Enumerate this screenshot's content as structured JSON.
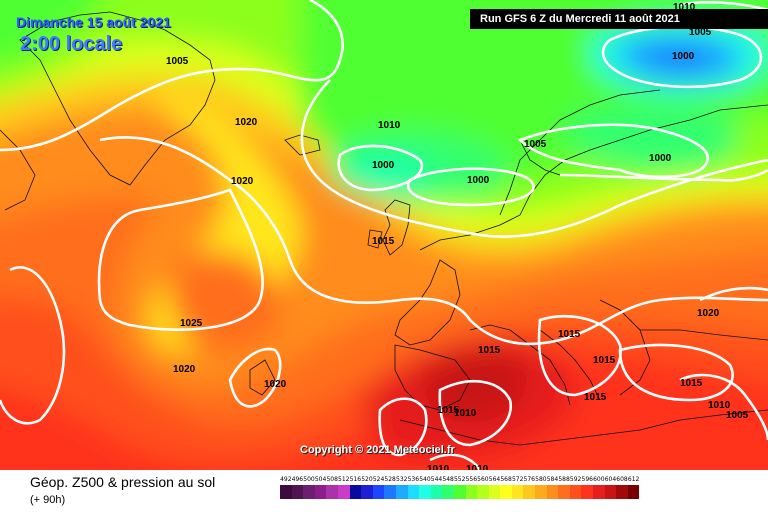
{
  "header": {
    "date": "Dimanche 15 août 2021",
    "local_time": "2:00 locale",
    "run": "Run GFS 6 Z du Mercredi 11 août 2021"
  },
  "copyright": "Copyright © 2021 Meteociel.fr",
  "footer": {
    "variable": "Géop. Z500 & pression au sol",
    "lead_time": "(+ 90h)"
  },
  "isobar_labels": [
    "1005",
    "1020",
    "1020",
    "1010",
    "1000",
    "1000",
    "1005",
    "1000",
    "1000",
    "1010",
    "1005",
    "1015",
    "1025",
    "1020",
    "1020",
    "1015",
    "1015",
    "1015",
    "1015",
    "1020",
    "1015",
    "1015",
    "1010",
    "1005",
    "1010",
    "1010",
    "1010"
  ],
  "legend": {
    "values": [
      "492",
      "496",
      "500",
      "504",
      "508",
      "512",
      "516",
      "520",
      "524",
      "528",
      "532",
      "536",
      "540",
      "544",
      "548",
      "552",
      "556",
      "560",
      "564",
      "568",
      "572",
      "576",
      "580",
      "584",
      "588",
      "592",
      "596",
      "600",
      "604",
      "608",
      "612"
    ],
    "colors": [
      "#3c0a3c",
      "#501450",
      "#6e1e6e",
      "#8c1e8c",
      "#aa32aa",
      "#c83cc8",
      "#0a0aa0",
      "#1e1ed2",
      "#1e46ff",
      "#1e78ff",
      "#1eaaff",
      "#1edcff",
      "#1effe6",
      "#1effaa",
      "#32ff6e",
      "#50ff32",
      "#8cff1e",
      "#b4ff1e",
      "#dcff1e",
      "#ffff1e",
      "#ffe61e",
      "#ffc81e",
      "#ffaa1e",
      "#ff8c1e",
      "#ff6e1e",
      "#ff501e",
      "#ff321e",
      "#e61e1e",
      "#c81414",
      "#a00a0a",
      "#780000"
    ]
  }
}
